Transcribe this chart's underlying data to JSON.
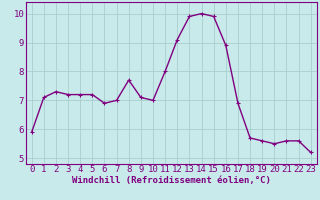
{
  "x": [
    0,
    1,
    2,
    3,
    4,
    5,
    6,
    7,
    8,
    9,
    10,
    11,
    12,
    13,
    14,
    15,
    16,
    17,
    18,
    19,
    20,
    21,
    22,
    23
  ],
  "y": [
    5.9,
    7.1,
    7.3,
    7.2,
    7.2,
    7.2,
    6.9,
    7.0,
    7.7,
    7.1,
    7.0,
    8.0,
    9.1,
    9.9,
    10.0,
    9.9,
    8.9,
    6.9,
    5.7,
    5.6,
    5.5,
    5.6,
    5.6,
    5.2
  ],
  "line_color": "#800080",
  "marker": "+",
  "marker_size": 3,
  "bg_color": "#c8eaea",
  "grid_color": "#a8cece",
  "xlabel": "Windchill (Refroidissement éolien,°C)",
  "xlim": [
    -0.5,
    23.5
  ],
  "ylim": [
    4.8,
    10.4
  ],
  "yticks": [
    5,
    6,
    7,
    8,
    9,
    10
  ],
  "xticks": [
    0,
    1,
    2,
    3,
    4,
    5,
    6,
    7,
    8,
    9,
    10,
    11,
    12,
    13,
    14,
    15,
    16,
    17,
    18,
    19,
    20,
    21,
    22,
    23
  ],
  "xlabel_fontsize": 6.5,
  "tick_fontsize": 6.5,
  "axis_color": "#800080",
  "line_width": 1.0,
  "spine_color": "#800080"
}
